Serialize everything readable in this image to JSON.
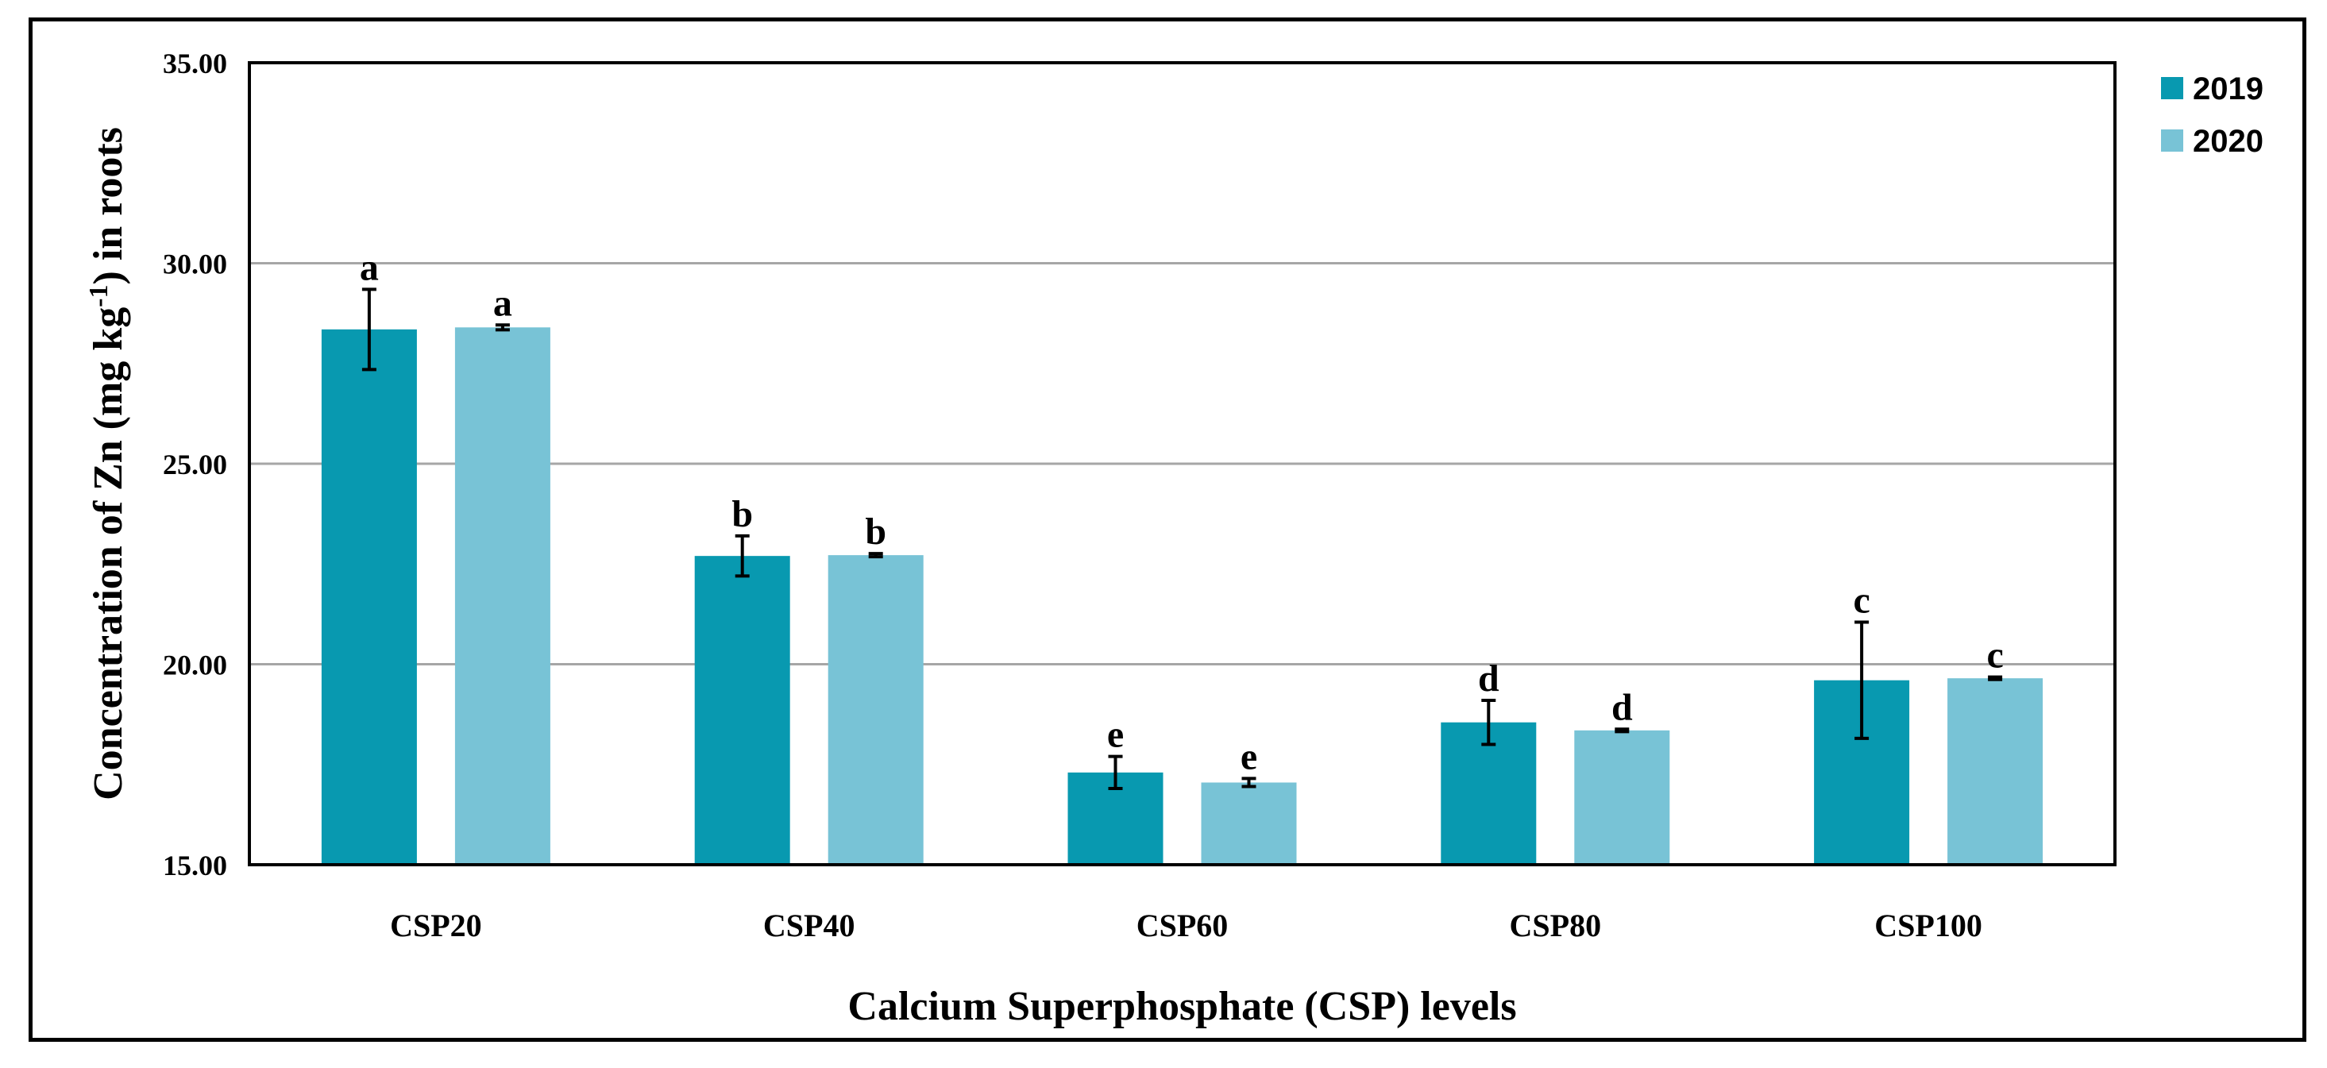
{
  "chart_data": {
    "type": "bar",
    "title": "",
    "categories": [
      "CSP20",
      "CSP40",
      "CSP60",
      "CSP80",
      "CSP100"
    ],
    "series": [
      {
        "name": "2019",
        "color": "#0899B0",
        "values": [
          28.35,
          22.7,
          17.3,
          18.55,
          19.6
        ],
        "errors": [
          1.0,
          0.5,
          0.4,
          0.55,
          1.45
        ],
        "letters": [
          "a",
          "b",
          "e",
          "d",
          "c"
        ]
      },
      {
        "name": "2020",
        "color": "#78C3D6",
        "values": [
          28.4,
          22.72,
          17.05,
          18.35,
          19.65
        ],
        "errors": [
          0.06,
          0.04,
          0.1,
          0.03,
          0.03
        ],
        "letters": [
          "a",
          "b",
          "e",
          "d",
          "c"
        ]
      }
    ],
    "xlabel": "Calcium Superphosphate (CSP) levels",
    "ylabel": {
      "prefix": "Concentration of Zn (mg kg",
      "superscript": "-1",
      "suffix": ") in roots"
    },
    "ylim": [
      15,
      35
    ],
    "yticks": [
      15,
      20,
      25,
      30,
      35
    ],
    "ytick_labels": [
      "15.00",
      "20.00",
      "25.00",
      "30.00",
      "35.00"
    ],
    "grid": true,
    "legend_position": "top-right",
    "error_bars": true
  }
}
